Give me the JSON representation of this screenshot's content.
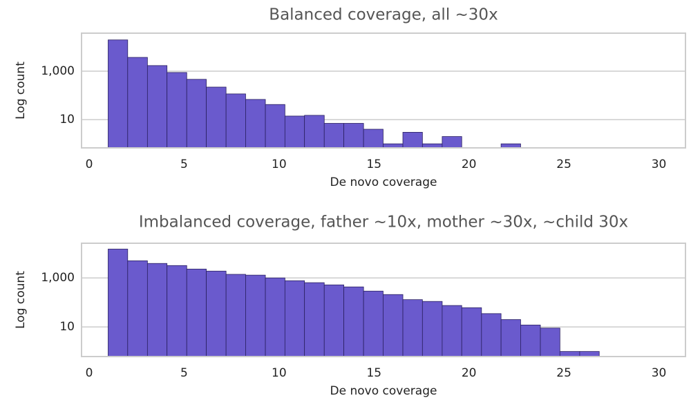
{
  "chart_data": [
    {
      "type": "histogram",
      "title": "Balanced coverage, all ~30x",
      "xlabel": "De novo coverage",
      "ylabel": "Log count",
      "bins": [
        1,
        2.03,
        3.07,
        4.1,
        5.14,
        6.17,
        7.21,
        8.24,
        9.28,
        10.31,
        11.34,
        12.38,
        13.41,
        14.45,
        15.48,
        16.52,
        17.55,
        18.59,
        19.62,
        20.66,
        21.69,
        22.72,
        23.76,
        24.79,
        25.83,
        26.86,
        27.9,
        28.93,
        29.97,
        31
      ],
      "values": [
        19500,
        3700,
        1700,
        880,
        460,
        220,
        115,
        68,
        42,
        14,
        15,
        7,
        7,
        4,
        1,
        3,
        1,
        2,
        0,
        0,
        1,
        0,
        0,
        0,
        0,
        0,
        0,
        0,
        0
      ],
      "color": "#6a5acd",
      "log_y": true,
      "grid": true,
      "xlim": [
        -0.4,
        31.4
      ],
      "xticks": [
        0,
        5,
        10,
        15,
        20,
        25,
        30
      ],
      "ylim": [
        0.68,
        37000
      ],
      "yticks": [
        10,
        {
          "value": 1000,
          "label": "1,000"
        }
      ]
    },
    {
      "type": "histogram",
      "title": "Imbalanced coverage, father ~10x, mother ~30x, ~child 30x",
      "xlabel": "De novo coverage",
      "ylabel": "Log count",
      "bins": [
        1,
        2.03,
        3.07,
        4.1,
        5.14,
        6.17,
        7.21,
        8.24,
        9.28,
        10.31,
        11.34,
        12.38,
        13.41,
        14.45,
        15.48,
        16.52,
        17.55,
        18.59,
        19.62,
        20.66,
        21.69,
        22.72,
        23.76,
        24.79,
        25.83,
        26.86,
        27.9,
        28.93,
        29.97,
        31
      ],
      "values": [
        15000,
        5000,
        3900,
        3200,
        2300,
        1900,
        1400,
        1300,
        1000,
        770,
        640,
        520,
        430,
        290,
        210,
        130,
        110,
        75,
        61,
        35,
        20,
        12,
        9,
        1,
        1,
        0,
        0,
        0,
        0
      ],
      "color": "#6a5acd",
      "log_y": true,
      "grid": true,
      "xlim": [
        -0.4,
        31.4
      ],
      "xticks": [
        0,
        5,
        10,
        15,
        20,
        25,
        30
      ],
      "ylim": [
        0.62,
        26000
      ],
      "yticks": [
        10,
        {
          "value": 1000,
          "label": "1,000"
        }
      ]
    }
  ]
}
